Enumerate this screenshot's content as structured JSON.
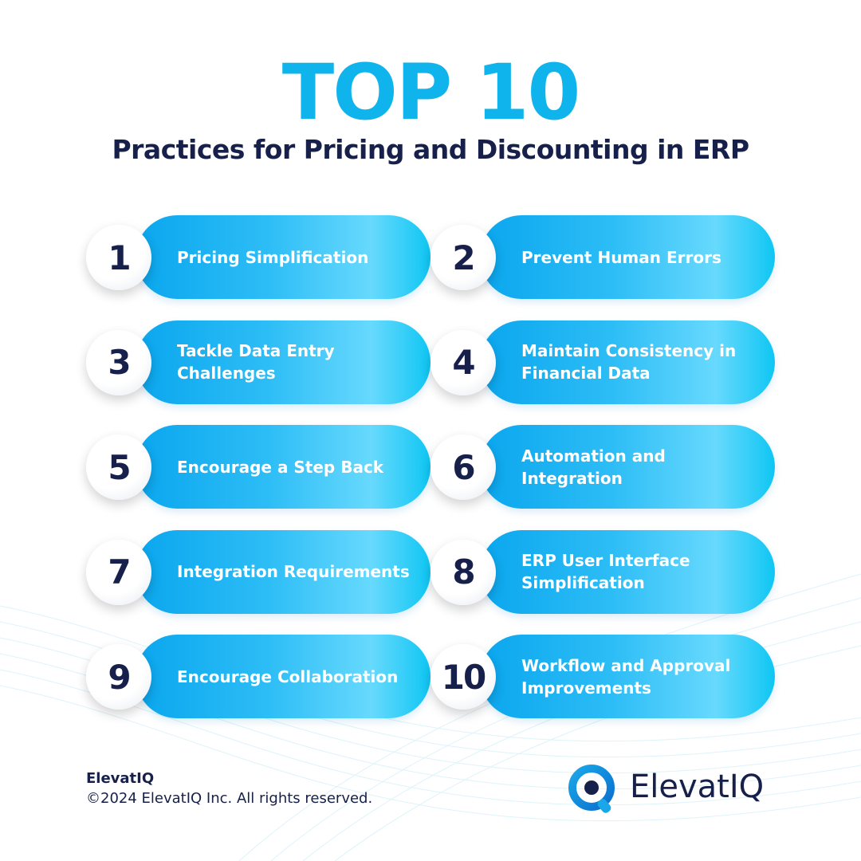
{
  "header": {
    "title": "TOP 10",
    "subtitle": "Practices for Pricing and Discounting in ERP"
  },
  "items": [
    {
      "number": "1",
      "lines": [
        "Pricing Simplification"
      ]
    },
    {
      "number": "2",
      "lines": [
        "Prevent Human Errors"
      ]
    },
    {
      "number": "3",
      "lines": [
        "Tackle Data Entry",
        "Challenges"
      ]
    },
    {
      "number": "4",
      "lines": [
        "Maintain Consistency in",
        "Financial Data"
      ]
    },
    {
      "number": "5",
      "lines": [
        "Encourage a Step Back"
      ]
    },
    {
      "number": "6",
      "lines": [
        "Automation and",
        "Integration"
      ]
    },
    {
      "number": "7",
      "lines": [
        "Integration Requirements"
      ]
    },
    {
      "number": "8",
      "lines": [
        "ERP User Interface",
        "Simplification"
      ]
    },
    {
      "number": "9",
      "lines": [
        "Encourage Collaboration"
      ]
    },
    {
      "number": "10",
      "lines": [
        "Workflow and Approval",
        "Improvements"
      ]
    }
  ],
  "footer": {
    "company": "ElevatIQ",
    "copyright": "©2024 ElevatIQ Inc. All rights reserved.",
    "logo_text": "ElevatIQ"
  }
}
